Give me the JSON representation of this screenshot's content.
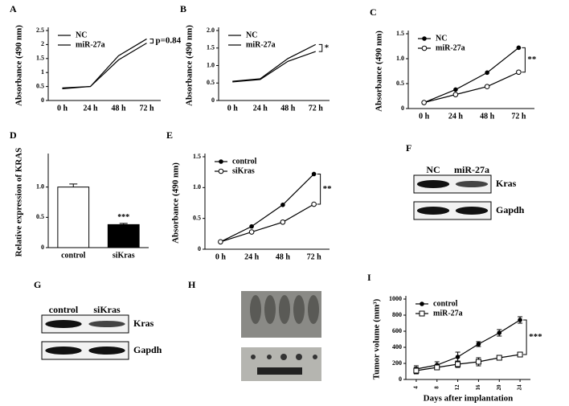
{
  "chart_data": [
    {
      "type": "line",
      "label": "A",
      "y_label": "Absorbance (490 nm)",
      "categories": [
        "0 h",
        "24 h",
        "48 h",
        "72 h"
      ],
      "series": [
        {
          "name": "NC",
          "color": "#000000",
          "marker": "none",
          "values": [
            0.45,
            0.5,
            1.6,
            2.2
          ]
        },
        {
          "name": "miR-27a",
          "color": "#000000",
          "marker": "none",
          "values": [
            0.42,
            0.5,
            1.45,
            2.05
          ]
        }
      ],
      "ylim": [
        0,
        2.5
      ],
      "yticks": [
        0,
        0.5,
        1,
        1.5,
        2,
        2.5
      ],
      "annotation": "p=0.84",
      "legend": "upper left"
    },
    {
      "type": "line",
      "label": "B",
      "y_label": "Absorbance (490 nm)",
      "categories": [
        "0 h",
        "24 h",
        "48 h",
        "72 h"
      ],
      "series": [
        {
          "name": "NC",
          "color": "#000000",
          "marker": "none",
          "values": [
            0.55,
            0.62,
            1.2,
            1.6
          ]
        },
        {
          "name": "miR-27a",
          "color": "#000000",
          "marker": "none",
          "values": [
            0.53,
            0.6,
            1.12,
            1.4
          ]
        }
      ],
      "ylim": [
        0,
        2.0
      ],
      "yticks": [
        0,
        0.5,
        {
          "value": 1,
          "label": "1.0"
        },
        1.5,
        {
          "value": 2,
          "label": "2.0"
        }
      ],
      "annotation": "*",
      "legend": "upper left"
    },
    {
      "type": "line",
      "label": "C",
      "y_label": "Absorbance (490 nm)",
      "categories": [
        "0 h",
        "24 h",
        "48 h",
        "72 h"
      ],
      "series": [
        {
          "name": "NC",
          "color": "#000000",
          "marker": "circle",
          "values": [
            0.12,
            0.38,
            0.72,
            1.22
          ]
        },
        {
          "name": "miR-27a",
          "color": "#000000",
          "marker": "open-circle",
          "values": [
            0.12,
            0.28,
            0.44,
            0.73
          ]
        }
      ],
      "ylim": [
        0,
        1.5
      ],
      "yticks": [
        0,
        0.5,
        {
          "value": 1,
          "label": "1.0"
        },
        1.5
      ],
      "annotation": "**",
      "legend": "upper left"
    },
    {
      "type": "bar",
      "label": "D",
      "y_label": "Relative expression of KRAS",
      "categories": [
        "control",
        "siKras"
      ],
      "values": [
        1.0,
        0.38
      ],
      "errors": [
        0.05,
        0.02
      ],
      "colors": [
        "#ffffff",
        "#000000"
      ],
      "ylim": [
        0,
        1.5
      ],
      "yticks": [
        0,
        0.5,
        {
          "value": 1,
          "label": "1.0"
        }
      ],
      "annotation": "***"
    },
    {
      "type": "line",
      "label": "E",
      "y_label": "Absorbance (490 nm)",
      "categories": [
        "0 h",
        "24 h",
        "48 h",
        "72 h"
      ],
      "series": [
        {
          "name": "control",
          "color": "#000000",
          "marker": "circle",
          "values": [
            0.12,
            0.37,
            0.72,
            1.22
          ]
        },
        {
          "name": "siKras",
          "color": "#000000",
          "marker": "open-circle",
          "values": [
            0.12,
            0.28,
            0.44,
            0.73
          ]
        }
      ],
      "ylim": [
        0,
        1.5
      ],
      "yticks": [
        0,
        0.5,
        {
          "value": 1,
          "label": "1.0"
        },
        1.5
      ],
      "annotation": "**",
      "legend": "upper left"
    },
    {
      "type": "line",
      "label": "I",
      "y_label": "Tumor volume (mm³)",
      "x_label": "Days after implantation",
      "x": [
        4,
        8,
        12,
        16,
        20,
        24
      ],
      "xlim": [
        2,
        26
      ],
      "xticks": [
        4,
        8,
        12,
        16,
        20,
        24
      ],
      "series": [
        {
          "name": "control",
          "color": "#000000",
          "marker": "circle",
          "values": [
            130,
            180,
            280,
            440,
            580,
            740
          ],
          "errors": [
            40,
            40,
            60,
            30,
            40,
            40
          ]
        },
        {
          "name": "miR-27a",
          "color": "#000000",
          "marker": "open-square",
          "values": [
            110,
            150,
            190,
            220,
            270,
            310
          ],
          "errors": [
            40,
            30,
            40,
            50,
            30,
            25
          ]
        }
      ],
      "ylim": [
        0,
        1000
      ],
      "yticks": [
        0,
        200,
        400,
        600,
        800,
        1000
      ],
      "annotation": "***",
      "legend": "upper left"
    }
  ],
  "blots": [
    {
      "label": "F",
      "lanes": [
        "NC",
        "miR-27a"
      ],
      "bands": [
        "Kras",
        "Gapdh"
      ]
    },
    {
      "label": "G",
      "lanes": [
        "control",
        "siKras"
      ],
      "bands": [
        "Kras",
        "Gapdh"
      ]
    }
  ],
  "photos": {
    "label": "H"
  }
}
